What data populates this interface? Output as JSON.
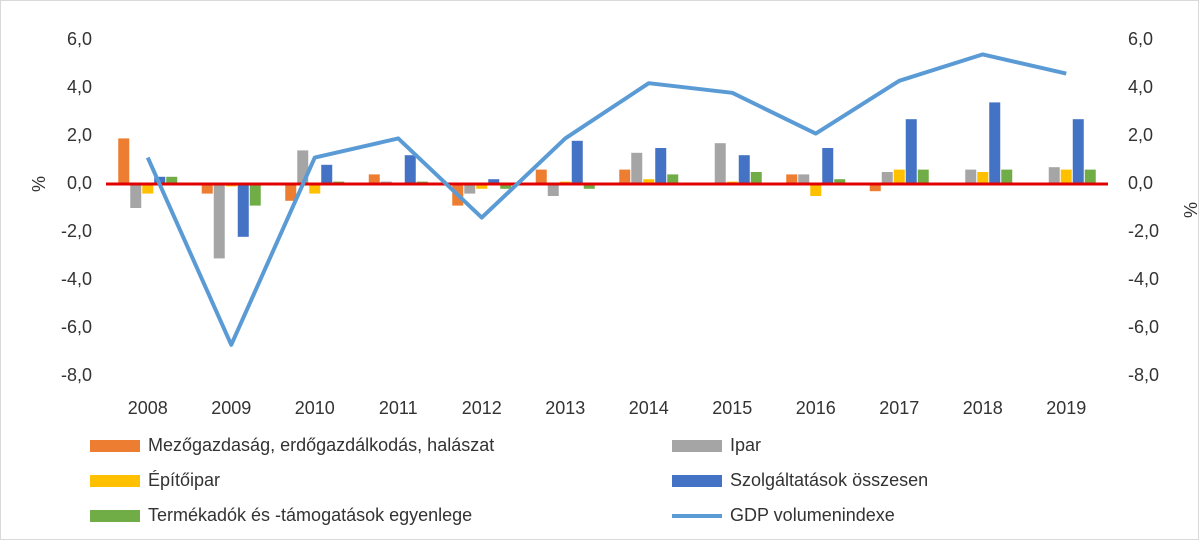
{
  "chart_data": {
    "type": "bar",
    "categories": [
      "2008",
      "2009",
      "2010",
      "2011",
      "2012",
      "2013",
      "2014",
      "2015",
      "2016",
      "2017",
      "2018",
      "2019"
    ],
    "series": [
      {
        "name": "Mezőgazdaság, erdőgazdálkodás, halászat",
        "color": "#ed7d31",
        "values": [
          1.9,
          -0.4,
          -0.7,
          0.4,
          -0.9,
          0.6,
          0.6,
          0.0,
          0.4,
          -0.3,
          0.0,
          0.0
        ]
      },
      {
        "name": "Ipar",
        "color": "#a5a5a5",
        "values": [
          -1.0,
          -3.1,
          1.4,
          0.1,
          -0.4,
          -0.5,
          1.3,
          1.7,
          0.4,
          0.5,
          0.6,
          0.7
        ]
      },
      {
        "name": "Építőipar",
        "color": "#ffc000",
        "values": [
          -0.4,
          -0.1,
          -0.4,
          0.0,
          -0.2,
          0.1,
          0.2,
          0.1,
          -0.5,
          0.6,
          0.5,
          0.6
        ]
      },
      {
        "name": "Szolgáltatások összesen",
        "color": "#4472c4",
        "values": [
          0.3,
          -2.2,
          0.8,
          1.2,
          0.2,
          1.8,
          1.5,
          1.2,
          1.5,
          2.7,
          3.4,
          2.7
        ]
      },
      {
        "name": "Termékadók és -támogatások egyenlege",
        "color": "#70ad47",
        "values": [
          0.3,
          -0.9,
          0.1,
          0.1,
          -0.2,
          -0.2,
          0.4,
          0.5,
          0.2,
          0.6,
          0.6,
          0.6
        ]
      },
      {
        "name": "GDP volumenindexe",
        "color": "#5b9bd5",
        "type": "line",
        "axis": "y2",
        "values": [
          1.1,
          -6.7,
          1.1,
          1.9,
          -1.4,
          1.9,
          4.2,
          3.8,
          2.1,
          4.3,
          5.4,
          4.6
        ]
      }
    ],
    "ylabel": "%",
    "y2label": "%",
    "ylim": [
      -8,
      6
    ],
    "yticks": [
      {
        "value": -8,
        "label": "-8,0"
      },
      {
        "value": -6,
        "label": "-6,0"
      },
      {
        "value": -4,
        "label": "-4,0"
      },
      {
        "value": -2,
        "label": "-2,0"
      },
      {
        "value": 0,
        "label": "0,0"
      },
      {
        "value": 2,
        "label": "2,0"
      },
      {
        "value": 4,
        "label": "4,0"
      },
      {
        "value": 6,
        "label": "6,0"
      }
    ],
    "y2lim": [
      -8,
      6
    ],
    "y2ticks": [
      {
        "value": -8,
        "label": "-8,0"
      },
      {
        "value": -6,
        "label": "-6,0"
      },
      {
        "value": -4,
        "label": "-4,0"
      },
      {
        "value": -2,
        "label": "-2,0"
      },
      {
        "value": 0,
        "label": "0,0"
      },
      {
        "value": 2,
        "label": "2,0"
      },
      {
        "value": 4,
        "label": "4,0"
      },
      {
        "value": 6,
        "label": "6,0"
      }
    ],
    "grid": false
  }
}
